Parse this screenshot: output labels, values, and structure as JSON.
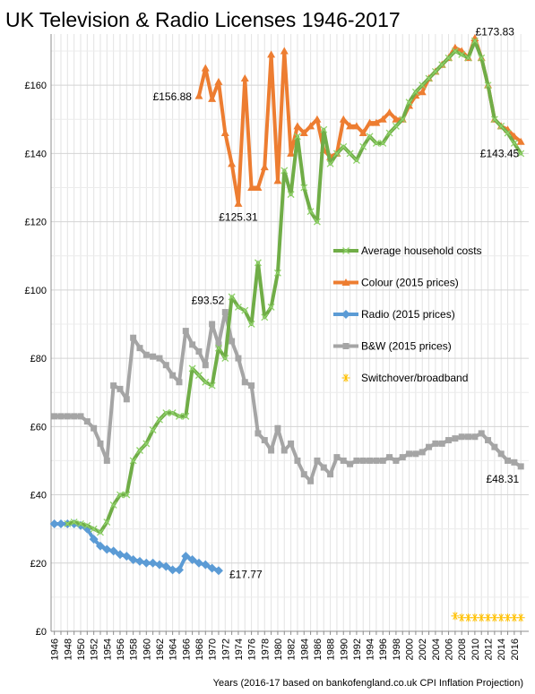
{
  "chart_data": {
    "type": "line",
    "title": "UK Television & Radio Licenses 1946-2017",
    "xlabel": "Years (2016-17  based on bankofengland.co.uk  CPI Inflation Projection)",
    "ylabel": "",
    "x": [
      1946,
      1947,
      1948,
      1949,
      1950,
      1951,
      1952,
      1953,
      1954,
      1955,
      1956,
      1957,
      1958,
      1959,
      1960,
      1961,
      1962,
      1963,
      1964,
      1965,
      1966,
      1967,
      1968,
      1969,
      1970,
      1971,
      1972,
      1973,
      1974,
      1975,
      1976,
      1977,
      1978,
      1979,
      1980,
      1981,
      1982,
      1983,
      1984,
      1985,
      1986,
      1987,
      1988,
      1989,
      1990,
      1991,
      1992,
      1993,
      1994,
      1995,
      1996,
      1997,
      1998,
      1999,
      2000,
      2001,
      2002,
      2003,
      2004,
      2005,
      2006,
      2007,
      2008,
      2009,
      2010,
      2011,
      2012,
      2013,
      2014,
      2015,
      2016,
      2017
    ],
    "x_ticks": [
      "1946",
      "1948",
      "1950",
      "1952",
      "1954",
      "1956",
      "1958",
      "1960",
      "1962",
      "1964",
      "1966",
      "1968",
      "1970",
      "1972",
      "1974",
      "1976",
      "1978",
      "1980",
      "1982",
      "1984",
      "1986",
      "1988",
      "1990",
      "1992",
      "1994",
      "1996",
      "1998",
      "2000",
      "2002",
      "2004",
      "2006",
      "2008",
      "2010",
      "2012",
      "2014",
      "2016"
    ],
    "y_ticks": [
      "£0",
      "£20",
      "£40",
      "£60",
      "£80",
      "£100",
      "£120",
      "£140",
      "£160"
    ],
    "ylim": [
      0,
      175
    ],
    "grid": true,
    "legend_position": "right",
    "series": [
      {
        "name": "Average household costs",
        "color": "#70ad47",
        "marker": "x",
        "values": [
          null,
          null,
          31.5,
          32,
          31.5,
          31,
          30,
          29,
          32,
          37,
          40,
          40,
          50,
          53,
          55,
          59,
          62,
          64,
          64,
          63,
          63,
          77,
          75,
          73,
          72,
          83,
          80,
          98,
          95,
          94,
          90,
          108,
          92,
          95,
          105,
          135,
          128,
          145,
          130,
          123,
          120,
          147,
          137,
          140,
          142,
          140,
          138,
          142,
          145,
          143,
          143,
          146,
          148,
          150,
          155,
          158,
          160,
          162,
          164,
          166,
          168,
          170,
          169,
          168,
          173,
          168,
          160,
          150,
          148,
          146,
          143,
          140
        ]
      },
      {
        "name": "Colour (2015 prices)",
        "color": "#ed7d31",
        "marker": "triangle",
        "values": [
          null,
          null,
          null,
          null,
          null,
          null,
          null,
          null,
          null,
          null,
          null,
          null,
          null,
          null,
          null,
          null,
          null,
          null,
          null,
          null,
          null,
          null,
          156.88,
          165,
          156,
          161,
          146,
          137,
          125.31,
          162,
          130,
          130,
          136,
          169,
          132,
          170,
          140,
          148,
          146,
          148,
          150,
          141,
          139,
          140,
          150,
          148,
          148,
          146,
          149,
          149,
          150,
          152,
          150,
          150,
          154,
          157,
          158,
          162,
          164,
          166,
          168,
          171,
          170,
          168,
          173.83,
          168,
          160,
          150,
          148,
          147,
          145,
          143.45
        ]
      },
      {
        "name": "Radio (2015 prices)",
        "color": "#5b9bd5",
        "marker": "diamond",
        "values": [
          31.5,
          31.5,
          31.5,
          31.5,
          31,
          30,
          27,
          25,
          24,
          23.5,
          22.5,
          22,
          21,
          20.5,
          20,
          20,
          19.5,
          19,
          18,
          18,
          22,
          21,
          20,
          19.5,
          18.5,
          17.77,
          null,
          null,
          null,
          null,
          null,
          null,
          null,
          null,
          null,
          null,
          null,
          null,
          null,
          null,
          null,
          null,
          null,
          null,
          null,
          null,
          null,
          null,
          null,
          null,
          null,
          null,
          null,
          null,
          null,
          null,
          null,
          null,
          null,
          null,
          null,
          null,
          null,
          null,
          null,
          null,
          null,
          null,
          null,
          null,
          null,
          null
        ]
      },
      {
        "name": "B&W (2015 prices)",
        "color": "#a5a5a5",
        "marker": "square",
        "values": [
          63,
          63,
          63,
          63,
          63,
          61.5,
          59.5,
          55,
          50,
          72,
          71,
          68,
          86,
          83,
          81,
          80.5,
          80,
          78,
          75,
          73,
          88,
          84,
          82,
          78,
          90,
          84,
          93.52,
          85,
          80,
          73,
          72,
          58,
          56,
          53,
          59.5,
          53,
          55,
          50,
          46,
          44,
          50,
          48,
          46,
          51,
          50,
          49,
          50,
          50,
          50,
          50,
          50,
          51,
          50,
          51,
          52,
          52,
          52.5,
          54,
          55,
          55,
          56,
          56.5,
          57,
          57,
          57,
          58,
          56,
          54,
          52,
          50,
          49.5,
          48.31
        ]
      },
      {
        "name": "Switchover/broadband",
        "color": "#ffc000",
        "marker": "star",
        "values": [
          null,
          null,
          null,
          null,
          null,
          null,
          null,
          null,
          null,
          null,
          null,
          null,
          null,
          null,
          null,
          null,
          null,
          null,
          null,
          null,
          null,
          null,
          null,
          null,
          null,
          null,
          null,
          null,
          null,
          null,
          null,
          null,
          null,
          null,
          null,
          null,
          null,
          null,
          null,
          null,
          null,
          null,
          null,
          null,
          null,
          null,
          null,
          null,
          null,
          null,
          null,
          null,
          null,
          null,
          null,
          null,
          null,
          null,
          null,
          null,
          null,
          4.5,
          4,
          4,
          4,
          4,
          4,
          4,
          4,
          4,
          4,
          4
        ]
      }
    ],
    "annotations": [
      {
        "text": "£173.83",
        "x": 2009,
        "y": 173.83
      },
      {
        "text": "£156.88",
        "x": 1968,
        "y": 156.88
      },
      {
        "text": "£143.45",
        "x": 2017,
        "y": 143.45
      },
      {
        "text": "£125.31",
        "x": 1974,
        "y": 125.31
      },
      {
        "text": "£93.52",
        "x": 1972,
        "y": 93.52
      },
      {
        "text": "£48.31",
        "x": 2017,
        "y": 48.31
      },
      {
        "text": "£17.77",
        "x": 1971,
        "y": 17.77
      }
    ]
  }
}
